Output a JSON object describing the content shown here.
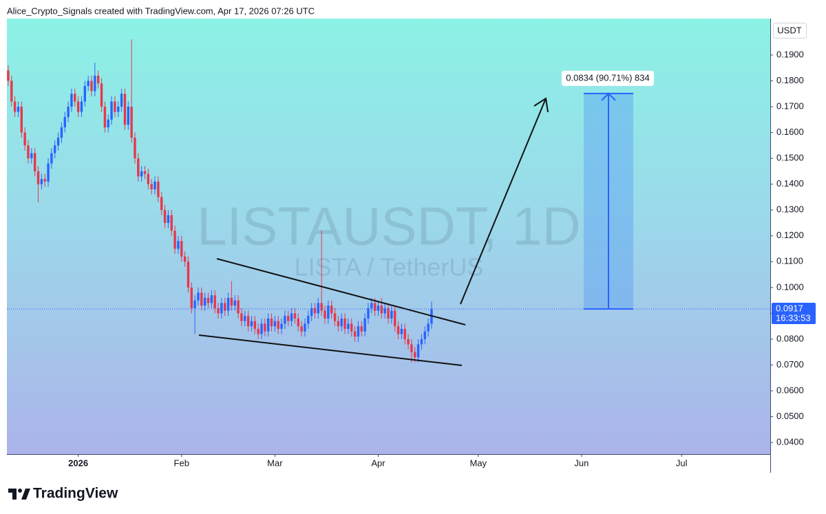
{
  "header": {
    "credit": "Alice_Crypto_Signals created with TradingView.com, Apr 17, 2026 07:26 UTC"
  },
  "footer": {
    "brand": "TradingView"
  },
  "chart_data": {
    "type": "candlestick",
    "title": "LISTAUSDT, 1D",
    "subtitle": "LISTA / TetherUS",
    "y_axis_label": "USDT",
    "up_color": "#2962ff",
    "down_color": "#e8374a",
    "open": [
      0.184,
      0.18,
      0.172,
      0.168,
      0.17,
      0.16,
      0.155,
      0.15,
      0.152,
      0.145,
      0.14,
      0.142,
      0.141,
      0.148,
      0.152,
      0.155,
      0.158,
      0.162,
      0.166,
      0.17,
      0.175,
      0.172,
      0.168,
      0.172,
      0.178,
      0.18,
      0.176,
      0.182,
      0.179,
      0.17,
      0.162,
      0.165,
      0.172,
      0.168,
      0.17,
      0.175,
      0.163,
      0.17,
      0.158,
      0.15,
      0.143,
      0.145,
      0.144,
      0.14,
      0.138,
      0.141,
      0.135,
      0.13,
      0.125,
      0.128,
      0.122,
      0.115,
      0.118,
      0.112,
      0.11,
      0.1,
      0.092,
      0.095,
      0.098,
      0.093,
      0.096,
      0.094,
      0.097,
      0.092,
      0.09,
      0.094,
      0.091,
      0.096,
      0.093,
      0.095,
      0.09,
      0.087,
      0.089,
      0.085,
      0.087,
      0.084,
      0.082,
      0.086,
      0.083,
      0.088,
      0.085,
      0.087,
      0.084,
      0.086,
      0.089,
      0.087,
      0.09,
      0.088,
      0.085,
      0.083,
      0.086,
      0.089,
      0.092,
      0.09,
      0.094,
      0.091,
      0.088,
      0.093,
      0.09,
      0.087,
      0.085,
      0.088,
      0.084,
      0.086,
      0.083,
      0.081,
      0.085,
      0.083,
      0.088,
      0.092,
      0.094,
      0.091,
      0.093,
      0.09,
      0.092,
      0.088,
      0.091,
      0.085,
      0.082,
      0.084,
      0.08,
      0.078,
      0.075,
      0.073,
      0.078,
      0.08,
      0.083,
      0.086
    ],
    "high": [
      0.186,
      0.182,
      0.174,
      0.172,
      0.172,
      0.162,
      0.157,
      0.154,
      0.154,
      0.147,
      0.144,
      0.144,
      0.15,
      0.154,
      0.157,
      0.16,
      0.164,
      0.168,
      0.172,
      0.177,
      0.177,
      0.174,
      0.174,
      0.18,
      0.182,
      0.182,
      0.187,
      0.184,
      0.181,
      0.172,
      0.167,
      0.174,
      0.174,
      0.172,
      0.177,
      0.177,
      0.172,
      0.196,
      0.16,
      0.152,
      0.147,
      0.147,
      0.146,
      0.142,
      0.143,
      0.143,
      0.137,
      0.132,
      0.13,
      0.13,
      0.124,
      0.12,
      0.12,
      0.114,
      0.112,
      0.102,
      0.097,
      0.1,
      0.1,
      0.098,
      0.098,
      0.099,
      0.099,
      0.094,
      0.096,
      0.096,
      0.098,
      0.1025,
      0.097,
      0.097,
      0.092,
      0.091,
      0.091,
      0.089,
      0.089,
      0.086,
      0.088,
      0.088,
      0.09,
      0.09,
      0.089,
      0.089,
      0.088,
      0.091,
      0.091,
      0.092,
      0.092,
      0.09,
      0.087,
      0.088,
      0.091,
      0.094,
      0.094,
      0.096,
      0.122,
      0.093,
      0.095,
      0.095,
      0.092,
      0.089,
      0.09,
      0.09,
      0.088,
      0.088,
      0.085,
      0.087,
      0.087,
      0.09,
      0.094,
      0.096,
      0.096,
      0.095,
      0.096,
      0.094,
      0.094,
      0.093,
      0.093,
      0.087,
      0.086,
      0.086,
      0.082,
      0.08,
      0.077,
      0.08,
      0.082,
      0.085,
      0.088,
      0.0945
    ],
    "low": [
      0.178,
      0.17,
      0.166,
      0.166,
      0.158,
      0.153,
      0.148,
      0.148,
      0.143,
      0.133,
      0.138,
      0.139,
      0.139,
      0.146,
      0.15,
      0.153,
      0.156,
      0.16,
      0.164,
      0.168,
      0.17,
      0.166,
      0.166,
      0.17,
      0.176,
      0.174,
      0.174,
      0.177,
      0.168,
      0.16,
      0.16,
      0.163,
      0.166,
      0.166,
      0.168,
      0.161,
      0.161,
      0.156,
      0.148,
      0.141,
      0.141,
      0.142,
      0.138,
      0.136,
      0.136,
      0.133,
      0.128,
      0.123,
      0.123,
      0.12,
      0.113,
      0.113,
      0.11,
      0.108,
      0.098,
      0.09,
      0.082,
      0.093,
      0.091,
      0.091,
      0.092,
      0.092,
      0.09,
      0.088,
      0.088,
      0.089,
      0.089,
      0.091,
      0.091,
      0.088,
      0.085,
      0.085,
      0.083,
      0.083,
      0.082,
      0.08,
      0.08,
      0.081,
      0.081,
      0.083,
      0.083,
      0.082,
      0.082,
      0.084,
      0.085,
      0.085,
      0.086,
      0.083,
      0.081,
      0.081,
      0.084,
      0.087,
      0.088,
      0.088,
      0.089,
      0.086,
      0.086,
      0.088,
      0.085,
      0.083,
      0.083,
      0.082,
      0.082,
      0.081,
      0.079,
      0.079,
      0.081,
      0.081,
      0.086,
      0.09,
      0.089,
      0.089,
      0.088,
      0.088,
      0.086,
      0.086,
      0.083,
      0.08,
      0.08,
      0.078,
      0.076,
      0.071,
      0.071,
      0.071,
      0.076,
      0.078,
      0.081,
      0.084
    ],
    "close": [
      0.18,
      0.172,
      0.168,
      0.17,
      0.16,
      0.155,
      0.15,
      0.152,
      0.145,
      0.14,
      0.142,
      0.141,
      0.148,
      0.152,
      0.155,
      0.158,
      0.162,
      0.166,
      0.17,
      0.175,
      0.172,
      0.168,
      0.172,
      0.178,
      0.18,
      0.176,
      0.182,
      0.179,
      0.17,
      0.162,
      0.165,
      0.172,
      0.168,
      0.17,
      0.175,
      0.163,
      0.17,
      0.158,
      0.15,
      0.143,
      0.145,
      0.144,
      0.14,
      0.138,
      0.141,
      0.135,
      0.13,
      0.125,
      0.128,
      0.122,
      0.115,
      0.118,
      0.112,
      0.11,
      0.1,
      0.092,
      0.095,
      0.098,
      0.093,
      0.096,
      0.094,
      0.097,
      0.092,
      0.09,
      0.094,
      0.091,
      0.096,
      0.093,
      0.095,
      0.09,
      0.087,
      0.089,
      0.085,
      0.087,
      0.084,
      0.082,
      0.086,
      0.083,
      0.088,
      0.085,
      0.087,
      0.084,
      0.086,
      0.089,
      0.087,
      0.09,
      0.088,
      0.085,
      0.083,
      0.086,
      0.089,
      0.092,
      0.09,
      0.094,
      0.091,
      0.088,
      0.093,
      0.09,
      0.087,
      0.085,
      0.088,
      0.084,
      0.086,
      0.083,
      0.081,
      0.085,
      0.083,
      0.088,
      0.092,
      0.094,
      0.091,
      0.093,
      0.09,
      0.092,
      0.088,
      0.091,
      0.085,
      0.082,
      0.084,
      0.08,
      0.078,
      0.075,
      0.073,
      0.078,
      0.08,
      0.083,
      0.086,
      0.0917
    ],
    "xlim": [
      -0.4,
      228.6
    ],
    "xticks": [
      {
        "value": 21,
        "label": "2026"
      },
      {
        "value": 52,
        "label": "Feb"
      },
      {
        "value": 80,
        "label": "Mar"
      },
      {
        "value": 111,
        "label": "Apr"
      },
      {
        "value": 141,
        "label": "May"
      },
      {
        "value": 172,
        "label": "Jun"
      },
      {
        "value": 202,
        "label": "Jul"
      }
    ],
    "ylim": [
      0.0355,
      0.2041
    ],
    "yticks": [
      {
        "value": 0.19,
        "label": "0.1900"
      },
      {
        "value": 0.18,
        "label": "0.1800"
      },
      {
        "value": 0.17,
        "label": "0.1700"
      },
      {
        "value": 0.16,
        "label": "0.1600"
      },
      {
        "value": 0.15,
        "label": "0.1500"
      },
      {
        "value": 0.14,
        "label": "0.1400"
      },
      {
        "value": 0.13,
        "label": "0.1300"
      },
      {
        "value": 0.12,
        "label": "0.1200"
      },
      {
        "value": 0.11,
        "label": "0.1100"
      },
      {
        "value": 0.1,
        "label": "0.1000"
      },
      {
        "value": 0.09,
        "label": "0.0900"
      },
      {
        "value": 0.08,
        "label": "0.0800"
      },
      {
        "value": 0.07,
        "label": "0.0700"
      },
      {
        "value": 0.06,
        "label": "0.0600"
      },
      {
        "value": 0.05,
        "label": "0.0500"
      },
      {
        "value": 0.04,
        "label": "0.0400"
      }
    ],
    "last_price": 0.0917,
    "countdown": "16:33:53",
    "measure": {
      "from": 0.0917,
      "to": 0.1751,
      "label": "0.0834 (90.71%) 834"
    }
  }
}
